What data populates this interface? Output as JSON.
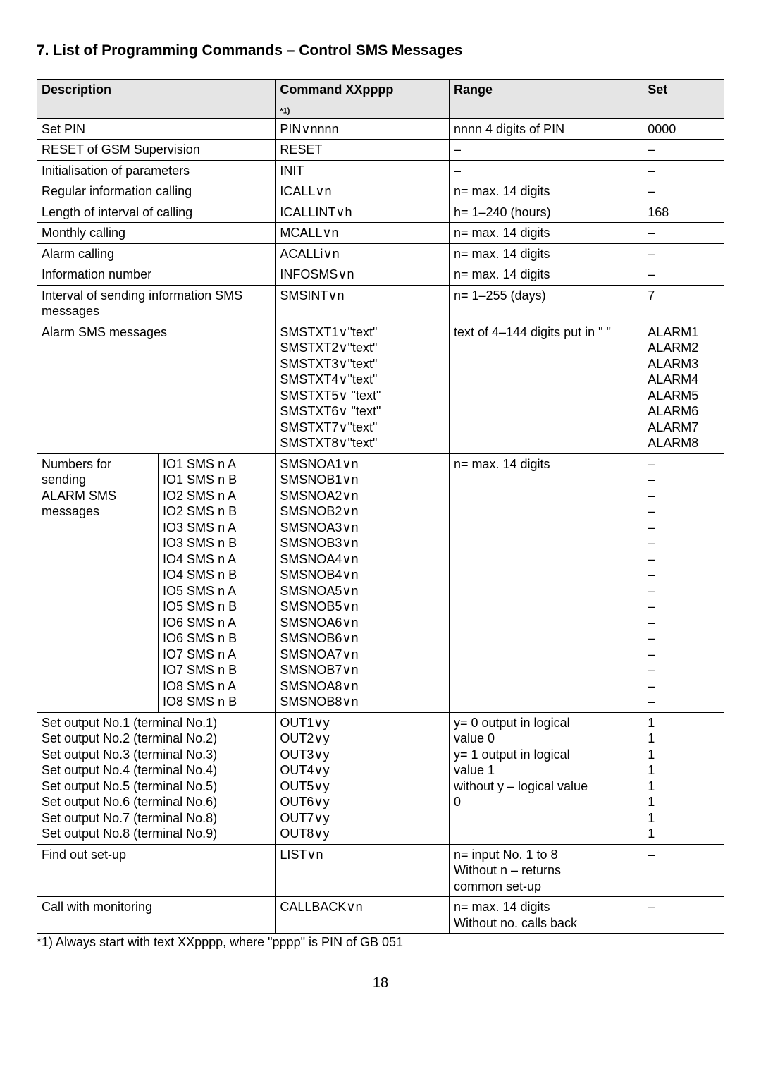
{
  "heading": "7.   List of Programming Commands – Control SMS Messages",
  "header": {
    "desc": "Description",
    "cmd": "Command XXpppp",
    "cmd_note": "*1)",
    "range": "Range",
    "set": "Set"
  },
  "rows": [
    {
      "desc": "Set PIN",
      "cmd": "PIN∨nnnn",
      "range": "nnnn 4 digits of PIN",
      "set": "0000"
    },
    {
      "desc": "RESET of GSM Supervision",
      "cmd": "RESET",
      "range": "–",
      "set": "–"
    },
    {
      "desc": "Initialisation of parameters",
      "cmd": "INIT",
      "range": "–",
      "set": "–"
    },
    {
      "desc": "Regular information calling",
      "cmd": "ICALL∨n",
      "range": "n= max. 14 digits",
      "set": "–"
    },
    {
      "desc": "Length of interval of calling",
      "cmd": "ICALLINT∨h",
      "range": "h= 1–240 (hours)",
      "set": "168"
    },
    {
      "desc": "Monthly calling",
      "cmd": "MCALL∨n",
      "range": "n= max. 14 digits",
      "set": "–"
    },
    {
      "desc": "Alarm calling",
      "cmd": "ACALLi∨n",
      "range": "n= max. 14 digits",
      "set": "–"
    },
    {
      "desc": "Information number",
      "cmd": "INFOSMS∨n",
      "range": "n= max. 14 digits",
      "set": "–"
    },
    {
      "desc": "Interval of sending information SMS messages",
      "cmd": "SMSINT∨n",
      "range": "n= 1–255 (days)",
      "set": "7"
    }
  ],
  "alarm_row": {
    "desc": "Alarm SMS messages",
    "cmds": [
      "SMSTXT1∨\"text\"",
      "SMSTXT2∨\"text\"",
      "SMSTXT3∨\"text\"",
      "SMSTXT4∨\"text\"",
      "SMSTXT5∨ \"text\"",
      "SMSTXT6∨ \"text\"",
      "SMSTXT7∨\"text\"",
      "SMSTXT8∨\"text\""
    ],
    "range": "text of 4–144 digits put in \" \"",
    "sets": [
      "ALARM1",
      "ALARM2",
      "ALARM3",
      "ALARM4",
      "ALARM5",
      "ALARM6",
      "ALARM7",
      "ALARM8"
    ]
  },
  "numbers_row": {
    "desc_label": "Numbers for sending ALARM SMS messages",
    "desc_sub": [
      "IO1 SMS n A",
      "IO1 SMS n B",
      "IO2 SMS n A",
      "IO2 SMS n B",
      "IO3 SMS n A",
      "IO3 SMS n B",
      "IO4 SMS n A",
      "IO4 SMS n B",
      "IO5 SMS n A",
      "IO5 SMS n B",
      "IO6 SMS n A",
      "IO6 SMS n B",
      "IO7 SMS n A",
      "IO7 SMS n B",
      "IO8 SMS n A",
      "IO8 SMS n B"
    ],
    "cmds": [
      "SMSNOA1∨n",
      "SMSNOB1∨n",
      "SMSNOA2∨n",
      "SMSNOB2∨n",
      "SMSNOA3∨n",
      "SMSNOB3∨n",
      "SMSNOA4∨n",
      "SMSNOB4∨n",
      "SMSNOA5∨n",
      "SMSNOB5∨n",
      "SMSNOA6∨n",
      "SMSNOB6∨n",
      "SMSNOA7∨n",
      "SMSNOB7∨n",
      "SMSNOA8∨n",
      "SMSNOB8∨n"
    ],
    "range": "n= max. 14 digits",
    "sets": [
      "–",
      "–",
      "–",
      "–",
      "–",
      "–",
      "–",
      "–",
      "–",
      "–",
      "–",
      "–",
      "–",
      "–",
      "–",
      "–"
    ]
  },
  "out_row": {
    "descs": [
      "Set output No.1 (terminal No.1)",
      "Set output No.2 (terminal No.2)",
      "Set output No.3 (terminal No.3)",
      "Set output No.4 (terminal No.4)",
      "Set output No.5 (terminal No.5)",
      "Set output No.6 (terminal No.6)",
      "Set output No.7 (terminal No.8)",
      "Set output No.8 (terminal No.9)"
    ],
    "cmds": [
      "OUT1∨y",
      "OUT2∨y",
      "OUT3∨y",
      "OUT4∨y",
      "OUT5∨y",
      "OUT6∨y",
      "OUT7∨y",
      "OUT8∨y"
    ],
    "range_lines": [
      "y= 0 output in logical",
      "value 0",
      "y= 1 output in logical",
      "value 1",
      "without y – logical value",
      "0"
    ],
    "sets": [
      "1",
      "1",
      "1",
      "1",
      "1",
      "1",
      "1",
      "1"
    ]
  },
  "find_row": {
    "desc": "Find out set-up",
    "cmd": "LIST∨n",
    "range_lines": [
      "n= input No. 1 to 8",
      "Without n – returns",
      "common set-up"
    ],
    "set": "–"
  },
  "call_row": {
    "desc": "Call with monitoring",
    "cmd": "CALLBACK∨n",
    "range_lines": [
      "n= max. 14 digits",
      "Without no. calls back"
    ],
    "set": "–"
  },
  "footnote": "*1) Always start with text XXpppp, where \"pppp\" is PIN of GB 051",
  "pagenum": "18"
}
